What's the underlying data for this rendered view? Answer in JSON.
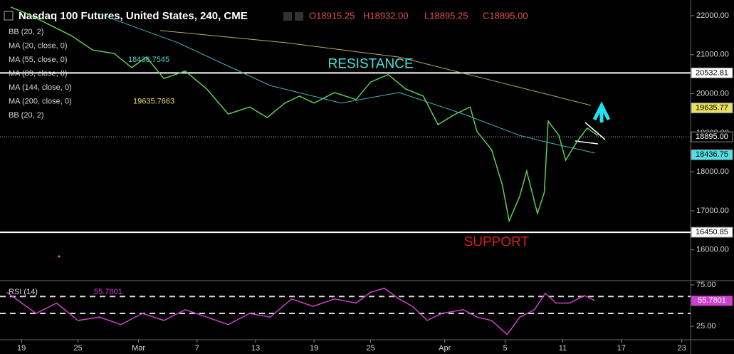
{
  "chart_data": {
    "type": "line",
    "title": "Nasdaq 100 Futures, United States, 240, CME",
    "ohlc": {
      "open": "O18915.25",
      "high": "H18932.00",
      "low": "L18895.25",
      "close": "C18895.00"
    },
    "indicators": [
      {
        "name": "BB (20, 2)"
      },
      {
        "name": "MA (20, close, 0)"
      },
      {
        "name": "MA (55, close, 0)",
        "value": 18436.7545,
        "color": "#4fd8d8"
      },
      {
        "name": "MA (89, close, 0)"
      },
      {
        "name": "MA (144, close, 0)"
      },
      {
        "name": "MA (200, close, 0)",
        "value": 19635.7663,
        "color": "#e8e060"
      },
      {
        "name": "BB (20, 2)"
      }
    ],
    "xlim": [
      -2.2,
      68.6
    ],
    "xticks": [
      {
        "value": 0,
        "label": "19"
      },
      {
        "value": 5.8,
        "label": "25"
      },
      {
        "value": 12,
        "label": "Mar"
      },
      {
        "value": 18,
        "label": "7"
      },
      {
        "value": 24,
        "label": "13"
      },
      {
        "value": 30,
        "label": "19"
      },
      {
        "value": 35.8,
        "label": "25"
      },
      {
        "value": 43.4,
        "label": "Apr"
      },
      {
        "value": 49.6,
        "label": "5"
      },
      {
        "value": 55.5,
        "label": "11"
      },
      {
        "value": 61.5,
        "label": "17"
      },
      {
        "value": 67.7,
        "label": "23"
      }
    ],
    "ylim": [
      15230,
      22310
    ],
    "yticks": [
      {
        "value": 16000,
        "label": "16000.00"
      },
      {
        "value": 17000,
        "label": "17000.00"
      },
      {
        "value": 18000,
        "label": "18000.00"
      },
      {
        "value": 19000,
        "label": "19000.00"
      },
      {
        "value": 20000,
        "label": "20000.00"
      },
      {
        "value": 21000,
        "label": "21000.00"
      },
      {
        "value": 22000,
        "label": "22000.00"
      }
    ],
    "series": [
      {
        "color": "#5fcf4f",
        "x": [
          -1.1,
          0.7,
          2.9,
          5.1,
          7.3,
          9.5,
          11.3,
          12.8,
          14.6,
          16.8,
          19,
          21.2,
          23.4,
          25.2,
          27,
          28.5,
          30,
          32.1,
          34.3,
          35.8,
          37.6,
          39.4,
          41.2,
          42.7,
          44.5,
          46,
          46.7,
          48.2,
          49.3,
          50,
          51.1,
          51.8,
          52.9,
          53.6,
          54,
          55.1,
          55.8,
          56.9,
          58,
          59.1
        ],
        "values": [
          22220,
          22040,
          21760,
          21490,
          21120,
          21030,
          20670,
          20940,
          20390,
          20580,
          20120,
          19480,
          19660,
          19390,
          19760,
          19940,
          19760,
          20030,
          19850,
          20300,
          20490,
          20120,
          19940,
          19210,
          19480,
          19660,
          19030,
          18570,
          17660,
          16740,
          17380,
          18020,
          16930,
          17470,
          19300,
          18930,
          18300,
          18750,
          19120,
          18930
        ]
      },
      {
        "color": "#3fb8c0",
        "x": [
          8,
          16,
          25.5,
          32.8,
          38.7,
          45.3,
          51.1,
          54,
          58.8
        ],
        "values": [
          22040,
          21310,
          20210,
          19760,
          20030,
          19480,
          18930,
          18750,
          18480
        ]
      },
      {
        "color": "#b8b060",
        "x": [
          14.2,
          27,
          38.7,
          48.9,
          58.4
        ],
        "values": [
          21620,
          21310,
          20940,
          20300,
          19700
        ]
      }
    ],
    "levels": [
      {
        "value": 20532.81,
        "bg": "#ffffff",
        "fg": "#000000",
        "line": "solid"
      },
      {
        "value": 19635.77,
        "bg": "#e8e060",
        "fg": "#000000",
        "line": "none"
      },
      {
        "value": {
          "value": 18895.0,
          "label": "18895.00"
        },
        "bg": "#000000",
        "fg": "#ffffff",
        "line": "dotted"
      },
      {
        "value": 18436.75,
        "bg": "#4fe0e8",
        "fg": "#000000",
        "line": "none"
      },
      {
        "value": 16450.85,
        "bg": "#ffffff",
        "fg": "#000000",
        "line": "solid"
      }
    ],
    "annotations": [
      {
        "text": "RESISTANCE",
        "x": 35.8,
        "y": 20750,
        "color": "#4fe0e0"
      },
      {
        "text": "SUPPORT",
        "x": 48.7,
        "y": 16190,
        "color": "#d02020"
      }
    ],
    "rsi": {
      "label": "RSI (14)",
      "value": 55.7801,
      "color": "#d040d0",
      "ylim": [
        9.5,
        78.4
      ],
      "yticks": [
        {
          "value": 75,
          "label": "75.00"
        },
        {
          "value": 25,
          "label": "25.00"
        }
      ],
      "levels": [
        61,
        40.5
      ],
      "x": [
        -1.5,
        1.5,
        3.6,
        5.8,
        8,
        10.2,
        12.4,
        14.6,
        16.8,
        19,
        21.2,
        23.4,
        25.5,
        27.7,
        29.9,
        32.1,
        34.3,
        35.8,
        37.2,
        38.7,
        40.1,
        41.6,
        43.1,
        45.3,
        46.7,
        48.2,
        49.8,
        51.1,
        52.6,
        53.7,
        54.8,
        56.2,
        57.7,
        58.8
      ],
      "values": [
        66,
        40.5,
        53,
        32,
        36,
        27,
        40.5,
        32,
        45,
        36,
        27,
        40.5,
        36,
        58,
        49,
        58,
        53,
        66,
        71,
        58,
        49,
        32,
        40.5,
        45,
        36,
        32,
        15,
        36,
        45,
        65,
        53,
        53,
        62,
        56
      ]
    }
  }
}
